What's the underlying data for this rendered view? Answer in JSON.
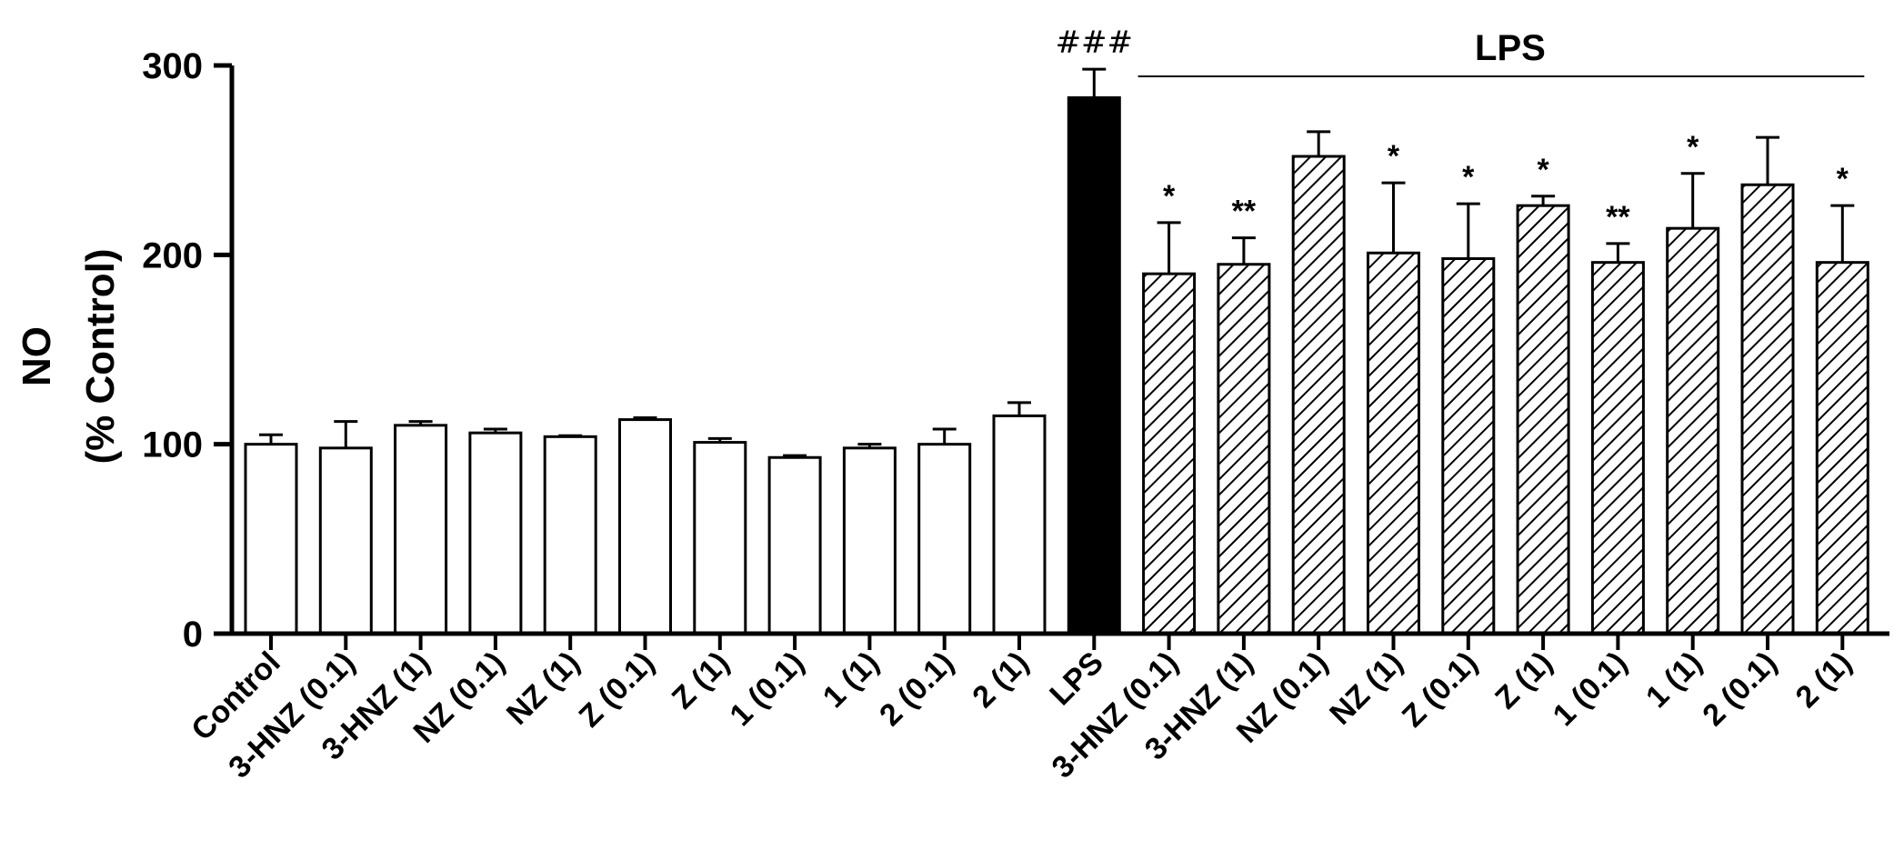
{
  "chart_data": {
    "type": "bar",
    "ylabel": [
      "NO",
      "(% Control)"
    ],
    "ylim": [
      0,
      300
    ],
    "yticks": [
      0,
      100,
      200,
      300
    ],
    "group_label": "LPS",
    "categories": [
      "Control",
      "3-HNZ (0.1)",
      "3-HNZ (1)",
      "NZ (0.1)",
      "NZ (1)",
      "Z (0.1)",
      "Z (1)",
      "1 (0.1)",
      "1 (1)",
      "2 (0.1)",
      "2 (1)",
      "LPS",
      "3-HNZ (0.1)",
      "3-HNZ (1)",
      "NZ (0.1)",
      "NZ (1)",
      "Z (0.1)",
      "Z (1)",
      "1 (0.1)",
      "1 (1)",
      "2 (0.1)",
      "2 (1)"
    ],
    "values": [
      100,
      98,
      110,
      106,
      104,
      113,
      101,
      93,
      98,
      100,
      115,
      283,
      190,
      195,
      252,
      201,
      198,
      226,
      196,
      214,
      237,
      196
    ],
    "errors": [
      5,
      14,
      2,
      2,
      0.5,
      1,
      2,
      1,
      2,
      8,
      7,
      15,
      27,
      14,
      13,
      37,
      29,
      5,
      10,
      29,
      25,
      30
    ],
    "fill": [
      "open",
      "open",
      "open",
      "open",
      "open",
      "open",
      "open",
      "open",
      "open",
      "open",
      "open",
      "solid",
      "hatched",
      "hatched",
      "hatched",
      "hatched",
      "hatched",
      "hatched",
      "hatched",
      "hatched",
      "hatched",
      "hatched"
    ],
    "significance": [
      "",
      "",
      "",
      "",
      "",
      "",
      "",
      "",
      "",
      "",
      "",
      "###",
      "*",
      "**",
      "",
      "*",
      "*",
      "*",
      "**",
      "*",
      "",
      "*"
    ],
    "colors": {
      "bar_edge": "#000000",
      "open": "#ffffff",
      "solid": "#000000",
      "hatch": "#000000"
    }
  }
}
